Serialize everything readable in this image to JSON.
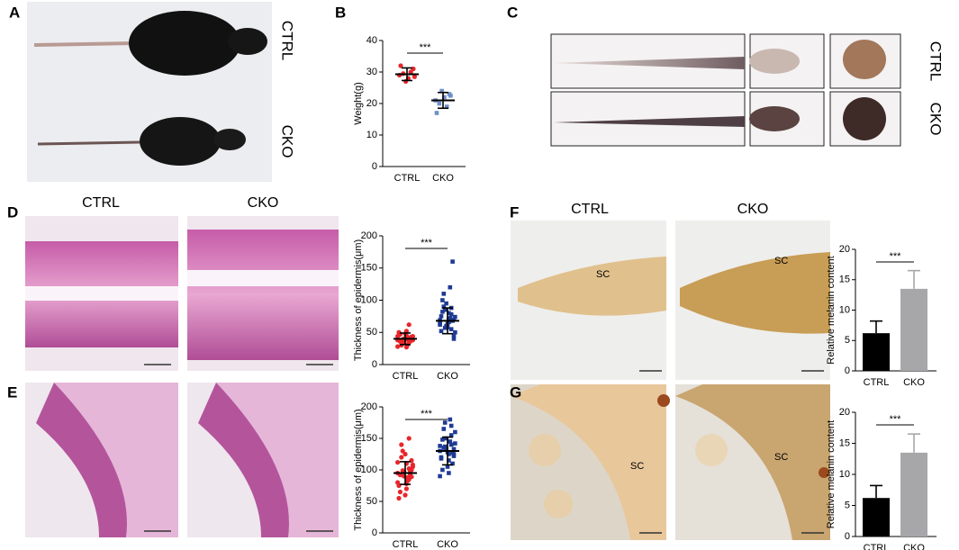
{
  "panel_labels": [
    "A",
    "B",
    "C",
    "D",
    "E",
    "F",
    "G"
  ],
  "panel_a": {
    "labels": [
      "CTRL",
      "CKO"
    ]
  },
  "panel_c": {
    "labels": [
      "CTRL",
      "CKO"
    ]
  },
  "panel_d": {
    "labels": [
      "CTRL",
      "CKO"
    ]
  },
  "panel_f": {
    "labels": [
      "CTRL",
      "CKO"
    ],
    "annotations": [
      "SC",
      "SC"
    ]
  },
  "panel_g": {
    "annotations": [
      "SC",
      "SC"
    ]
  },
  "chart_data": [
    {
      "type": "scatter",
      "ylabel": "Weight(g)",
      "categories": [
        "CTRL",
        "CKO"
      ],
      "annotation": "***",
      "ylim": [
        0,
        40
      ],
      "yticks": [
        0,
        10,
        20,
        30,
        40
      ],
      "series": [
        {
          "color": "#e8262b",
          "marker": "circle",
          "values": [
            29,
            31,
            30,
            28,
            27,
            29.5,
            32,
            28.5
          ],
          "mean": 29.3,
          "error": 2
        },
        {
          "color": "#6f8fc9",
          "marker": "square",
          "values": [
            21,
            23,
            19,
            22,
            24,
            20,
            17,
            22.5
          ],
          "mean": 21,
          "error": 2.5
        }
      ]
    },
    {
      "type": "scatter",
      "ylabel": "Thickness of epidermis(μm)",
      "categories": [
        "CTRL",
        "CKO"
      ],
      "annotation": "***",
      "ylim": [
        0,
        200
      ],
      "yticks": [
        0,
        50,
        100,
        150,
        200
      ],
      "series": [
        {
          "color": "#e8262b",
          "marker": "circle",
          "values": [
            38,
            42,
            35,
            45,
            40,
            30,
            50,
            44,
            36,
            41,
            39,
            33,
            47,
            28,
            43,
            37,
            52,
            40,
            34,
            46,
            38,
            42,
            31,
            48,
            39,
            36,
            44,
            41,
            62,
            27
          ],
          "mean": 40,
          "error": 9
        },
        {
          "color": "#1f3a93",
          "marker": "square",
          "values": [
            65,
            70,
            55,
            80,
            60,
            90,
            75,
            50,
            68,
            72,
            58,
            85,
            100,
            62,
            45,
            78,
            66,
            95,
            110,
            52,
            74,
            160,
            120,
            63,
            57,
            82,
            69,
            40,
            88,
            71
          ],
          "mean": 68,
          "error": 20
        }
      ]
    },
    {
      "type": "scatter",
      "ylabel": "Thickness of epidermis(μm)",
      "categories": [
        "CTRL",
        "CKO"
      ],
      "annotation": "***",
      "ylim": [
        0,
        200
      ],
      "yticks": [
        0,
        50,
        100,
        150,
        200
      ],
      "series": [
        {
          "color": "#e8262b",
          "marker": "circle",
          "values": [
            95,
            100,
            85,
            110,
            90,
            120,
            75,
            105,
            98,
            88,
            60,
            130,
            92,
            80,
            115,
            102,
            70,
            97,
            140,
            55,
            108,
            93,
            83,
            125,
            99,
            65,
            112,
            89,
            150,
            78
          ],
          "mean": 95,
          "error": 18
        },
        {
          "color": "#1f3a93",
          "marker": "square",
          "values": [
            130,
            125,
            140,
            115,
            150,
            135,
            120,
            160,
            110,
            145,
            128,
            175,
            100,
            138,
            122,
            155,
            95,
            132,
            165,
            118,
            142,
            127,
            180,
            105,
            137,
            148,
            90,
            133,
            170,
            125
          ],
          "mean": 130,
          "error": 22
        }
      ]
    },
    {
      "type": "bar",
      "ylabel": "Relative melanin content",
      "categories": [
        "CTRL",
        "CKO"
      ],
      "annotation": "***",
      "ylim": [
        0,
        20
      ],
      "yticks": [
        0,
        5,
        10,
        15,
        20
      ],
      "values": [
        6.2,
        13.5
      ],
      "errors": [
        2,
        3
      ],
      "colors": [
        "#000000",
        "#a7a7aa"
      ]
    },
    {
      "type": "bar",
      "ylabel": "Relative melanin content",
      "categories": [
        "CTRL",
        "CKO"
      ],
      "annotation": "***",
      "ylim": [
        0,
        20
      ],
      "yticks": [
        0,
        5,
        10,
        15,
        20
      ],
      "values": [
        6.2,
        13.5
      ],
      "errors": [
        2,
        3
      ],
      "colors": [
        "#000000",
        "#a7a7aa"
      ]
    }
  ]
}
